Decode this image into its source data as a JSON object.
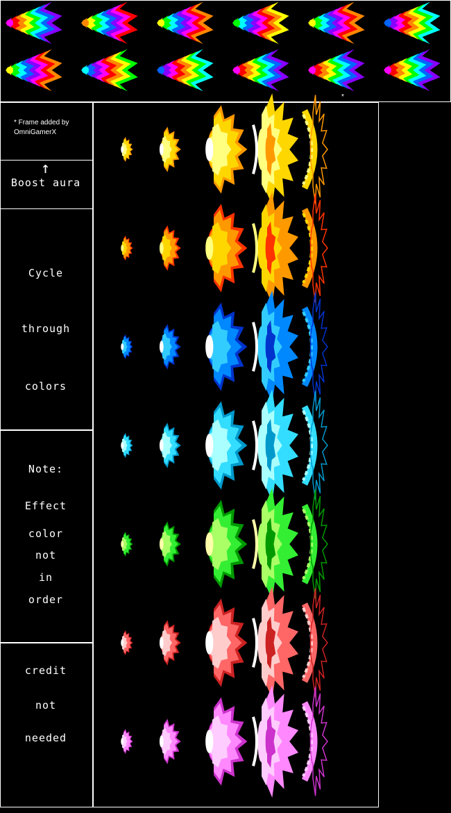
{
  "header_sprites": {
    "rows": [
      [
        "#ff00ff",
        "#ff0080",
        "#ff2000",
        "#ff0040",
        "#ffff00",
        "#ff00c0"
      ],
      [
        "#ffff00",
        "#00ffff",
        "#0080ff",
        "#ff00ff",
        "#ff0080",
        "#ff00ff"
      ]
    ]
  },
  "credit_note": {
    "frame_added": "* Frame added by",
    "author": "OmniGamerX",
    "asterisk": "*"
  },
  "labels": {
    "boost_arrow": "↑",
    "boost": "Boost aura",
    "cycle": "Cycle",
    "through": "through",
    "colors": "colors",
    "note": "Note:",
    "effect": "Effect",
    "color": "color",
    "not1": "not",
    "in": "in",
    "order": "order",
    "credit": "credit",
    "not2": "not",
    "needed": "needed"
  },
  "aura_rows": [
    {
      "name": "gold",
      "main": "#ffd700",
      "light": "#ffff80",
      "dark": "#ff9900",
      "core": "#ffffff"
    },
    {
      "name": "orange",
      "main": "#ff9900",
      "light": "#ffd700",
      "dark": "#ff3300",
      "core": "#ffff80"
    },
    {
      "name": "blue",
      "main": "#0088ff",
      "light": "#33ccff",
      "dark": "#0033cc",
      "core": "#ffffff"
    },
    {
      "name": "cyan",
      "main": "#33ddff",
      "light": "#aaffff",
      "dark": "#0099cc",
      "core": "#ffffff"
    },
    {
      "name": "green",
      "main": "#33ee33",
      "light": "#aaff66",
      "dark": "#009900",
      "core": "#ffffaa"
    },
    {
      "name": "red",
      "main": "#ff6666",
      "light": "#ffcccc",
      "dark": "#cc2222",
      "core": "#ffffff"
    },
    {
      "name": "pink",
      "main": "#ff88ff",
      "light": "#ffccff",
      "dark": "#cc33cc",
      "core": "#ffffff"
    }
  ]
}
